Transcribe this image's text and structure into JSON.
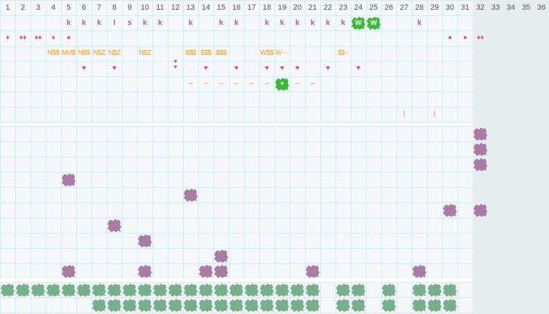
{
  "columns": [
    "1",
    "2",
    "3",
    "4",
    "5",
    "6",
    "7",
    "8",
    "9",
    "10",
    "11",
    "12",
    "13",
    "14",
    "15",
    "16",
    "17",
    "18",
    "19",
    "20",
    "21",
    "22",
    "23",
    "24",
    "25",
    "26",
    "27",
    "28",
    "29",
    "30",
    "31",
    "32",
    "33",
    "34",
    "35",
    "36"
  ],
  "colors": {
    "purple": "#a97ca3",
    "green": "#77b08a",
    "bright_green": "#3fb83a",
    "heart": "#e0456a",
    "gold": "#f0a020",
    "orange": "#f07a3a"
  },
  "letters_row": [
    {
      "col": 5,
      "text": "k"
    },
    {
      "col": 6,
      "text": "k"
    },
    {
      "col": 7,
      "text": "k"
    },
    {
      "col": 8,
      "text": "l"
    },
    {
      "col": 9,
      "text": "s"
    },
    {
      "col": 10,
      "text": "k"
    },
    {
      "col": 11,
      "text": "k"
    },
    {
      "col": 13,
      "text": "k"
    },
    {
      "col": 15,
      "text": "k"
    },
    {
      "col": 16,
      "text": "k"
    },
    {
      "col": 18,
      "text": "k"
    },
    {
      "col": 19,
      "text": "k"
    },
    {
      "col": 20,
      "text": "k"
    },
    {
      "col": 21,
      "text": "k"
    },
    {
      "col": 22,
      "text": "k"
    },
    {
      "col": 23,
      "text": "k"
    },
    {
      "col": 28,
      "text": "k"
    }
  ],
  "w_badges": [
    {
      "col": 24,
      "text": "W"
    },
    {
      "col": 25,
      "text": "W"
    }
  ],
  "drops_row": [
    {
      "col": 1,
      "text": "♦"
    },
    {
      "col": 2,
      "text": "♦♦"
    },
    {
      "col": 3,
      "text": "♦♦"
    },
    {
      "col": 4,
      "text": "♦"
    },
    {
      "col": 5,
      "text": "●"
    },
    {
      "col": 30,
      "text": "●"
    },
    {
      "col": 31,
      "text": "●"
    },
    {
      "col": 32,
      "text": "♦♦"
    }
  ],
  "tokens_row": [
    {
      "col": 4,
      "text": "N$$"
    },
    {
      "col": 5,
      "text": "NM$"
    },
    {
      "col": 6,
      "text": "N$$"
    },
    {
      "col": 7,
      "text": "N$Z"
    },
    {
      "col": 8,
      "text": "N$Z"
    },
    {
      "col": 10,
      "text": "N$Z"
    },
    {
      "col": 13,
      "text": "$$$"
    },
    {
      "col": 14,
      "text": "$$$"
    },
    {
      "col": 15,
      "text": "$$$"
    },
    {
      "col": 18,
      "text": "W$$"
    },
    {
      "col": 19,
      "text": "W - -"
    },
    {
      "col": 23,
      "text": "$$ -"
    }
  ],
  "hearts_row": [
    6,
    8,
    12,
    14,
    16,
    18,
    19,
    20,
    22,
    24
  ],
  "double_heart_col": 12,
  "dashes_row": [
    13,
    14,
    15,
    16,
    17,
    18,
    20,
    21
  ],
  "plus_badge": {
    "col": 19,
    "text": "+"
  },
  "ticks_row": [
    27,
    29
  ],
  "purple_blobs": [
    [
      32,
      1
    ],
    [
      32,
      2
    ],
    [
      32,
      3
    ],
    [
      5,
      4
    ],
    [
      13,
      5
    ],
    [
      30,
      6
    ],
    [
      32,
      6
    ],
    [
      8,
      7
    ],
    [
      10,
      8
    ],
    [
      15,
      9
    ],
    [
      5,
      10
    ],
    [
      10,
      10
    ],
    [
      14,
      10
    ],
    [
      15,
      10
    ],
    [
      21,
      10
    ],
    [
      28,
      10
    ]
  ],
  "green_row1": [
    1,
    2,
    3,
    4,
    5,
    6,
    7,
    8,
    9,
    10,
    11,
    12,
    13,
    14,
    15,
    16,
    17,
    18,
    19,
    20,
    21,
    23,
    24,
    26,
    28,
    29,
    30
  ],
  "green_row2": [
    7,
    8,
    9,
    10,
    11,
    12,
    13,
    14,
    15,
    16,
    17,
    18,
    19,
    20,
    21,
    23,
    24,
    26,
    28,
    29,
    30
  ]
}
